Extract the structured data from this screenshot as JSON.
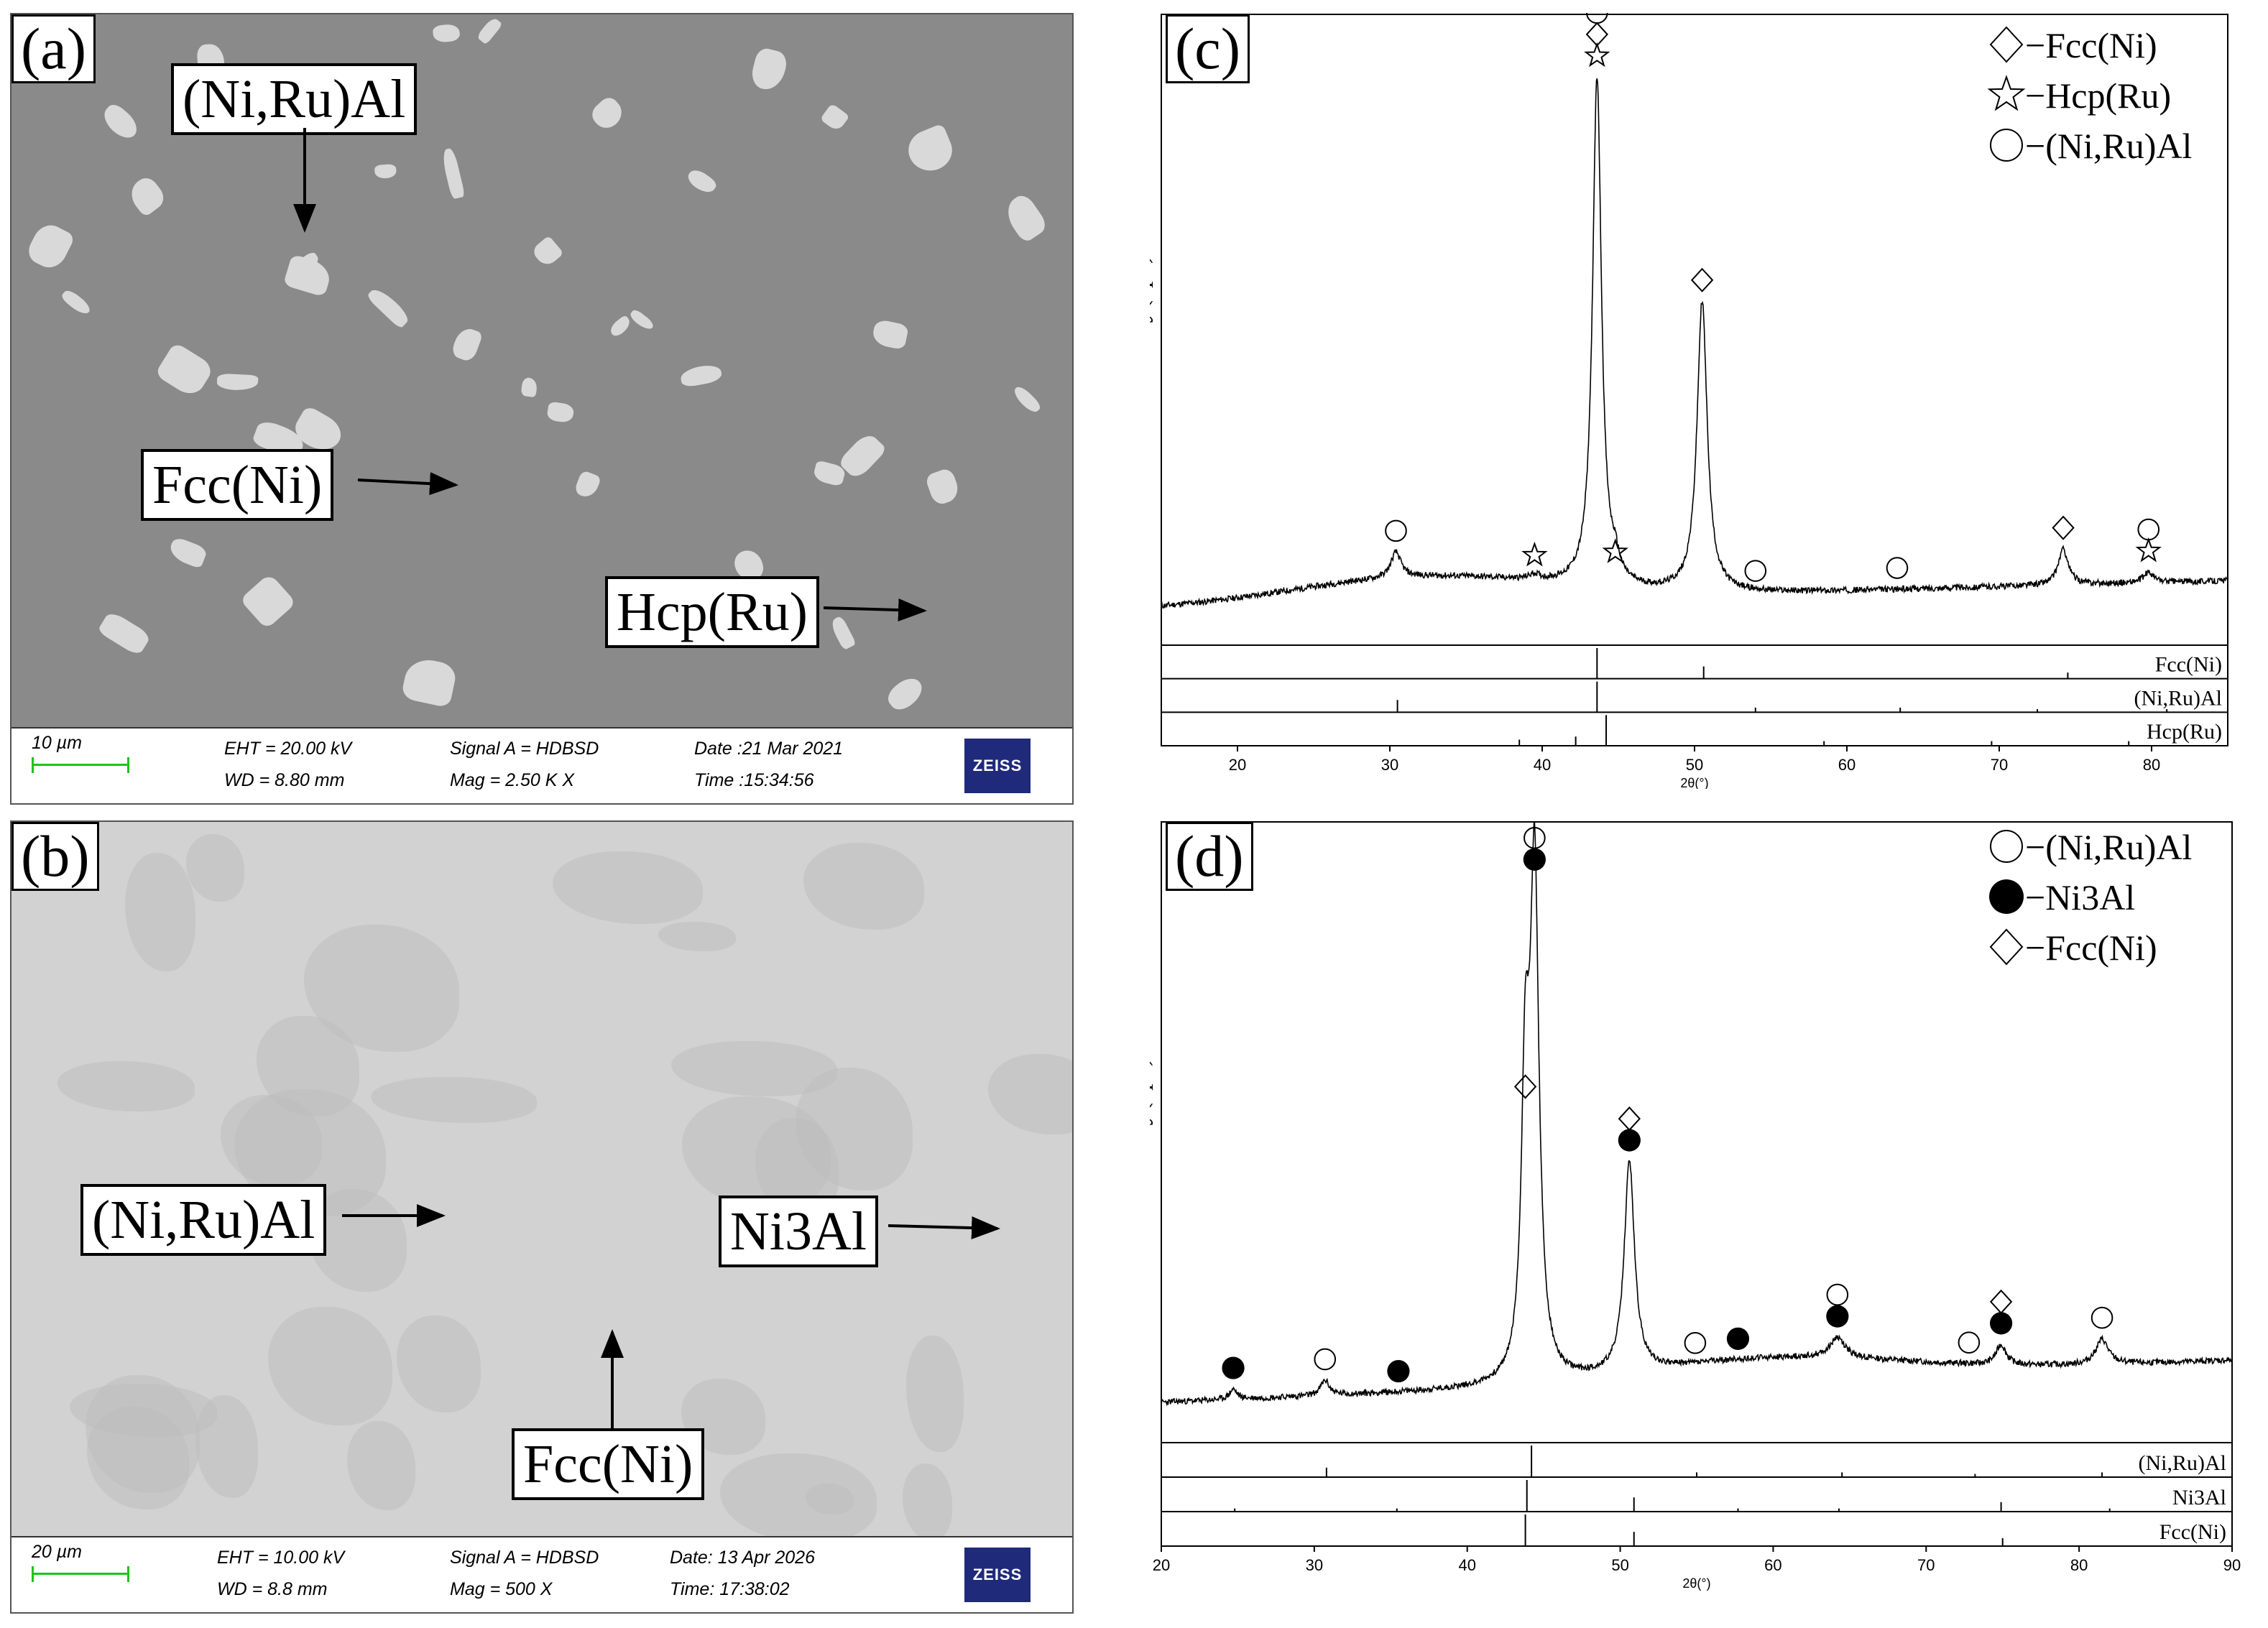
{
  "panel_a": {
    "letter": "(a)",
    "labels": {
      "nirual": "(Ni,Ru)Al",
      "fcc": "Fcc(Ni)",
      "hcp": "Hcp(Ru)"
    },
    "info": {
      "scale": "10 µm",
      "eht": "EHT = 20.00 kV",
      "wd": "WD = 8.80 mm",
      "signal": "Signal A = HDBSD",
      "mag": "Mag =    2.50 K X",
      "date": "Date :21 Mar 2021",
      "time": "Time :15:34:56",
      "logo": "ZEISS"
    }
  },
  "panel_b": {
    "letter": "(b)",
    "labels": {
      "nirual": "(Ni,Ru)Al",
      "ni3al": "Ni3Al",
      "fcc": "Fcc(Ni)"
    },
    "info": {
      "scale": "20 µm",
      "eht": "EHT = 10.00 kV",
      "wd": "WD =  8.8 mm",
      "signal": "Signal A = HDBSD",
      "mag": "Mag =    500 X",
      "date": "Date: 13 Apr 2026",
      "time": "Time: 17:38:02",
      "logo": "ZEISS"
    }
  },
  "chart_data": [
    {
      "type": "line",
      "panel": "(c)",
      "ylabel": "Intensity(cps)",
      "xlabel": "2θ(°)",
      "xlim": [
        15,
        85
      ],
      "xticks": [
        20,
        30,
        40,
        50,
        60,
        70,
        80
      ],
      "legend": [
        {
          "symbol": "diamond",
          "label": "−Fcc(Ni)"
        },
        {
          "symbol": "star",
          "label": "−Hcp(Ru)"
        },
        {
          "symbol": "circle",
          "label": "−(Ni,Ru)Al"
        }
      ],
      "peaks": [
        {
          "x": 30.4,
          "h": 0.05,
          "w": 0.4,
          "marks": [
            "circle"
          ]
        },
        {
          "x": 39.5,
          "h": 0.01,
          "w": 0.4,
          "marks": [
            "star"
          ]
        },
        {
          "x": 43.6,
          "h": 1.0,
          "w": 0.35,
          "marks": [
            "star",
            "diamond",
            "circle"
          ]
        },
        {
          "x": 44.8,
          "h": 0.03,
          "w": 0.3,
          "marks": [
            "star"
          ]
        },
        {
          "x": 50.5,
          "h": 0.57,
          "w": 0.4,
          "marks": [
            "diamond"
          ]
        },
        {
          "x": 54.0,
          "h": 0.0,
          "w": 0.4,
          "marks": [
            "circle"
          ]
        },
        {
          "x": 63.3,
          "h": 0.0,
          "w": 0.4,
          "marks": [
            "circle"
          ]
        },
        {
          "x": 74.2,
          "h": 0.07,
          "w": 0.4,
          "marks": [
            "diamond"
          ]
        },
        {
          "x": 79.8,
          "h": 0.02,
          "w": 0.4,
          "marks": [
            "star",
            "circle"
          ]
        }
      ],
      "reference_rows": [
        {
          "label": "Fcc(Ni)",
          "lines": [
            {
              "x": 43.6,
              "h": 1.0
            },
            {
              "x": 50.6,
              "h": 0.4
            },
            {
              "x": 74.5,
              "h": 0.2
            }
          ]
        },
        {
          "label": "(Ni,Ru)Al",
          "lines": [
            {
              "x": 30.5,
              "h": 0.4
            },
            {
              "x": 43.6,
              "h": 1.0
            },
            {
              "x": 54.0,
              "h": 0.15
            },
            {
              "x": 63.5,
              "h": 0.15
            },
            {
              "x": 72.5,
              "h": 0.1
            },
            {
              "x": 81.0,
              "h": 0.1
            }
          ]
        },
        {
          "label": "Hcp(Ru)",
          "lines": [
            {
              "x": 38.5,
              "h": 0.2
            },
            {
              "x": 42.2,
              "h": 0.3
            },
            {
              "x": 44.2,
              "h": 1.0
            },
            {
              "x": 58.5,
              "h": 0.15
            },
            {
              "x": 69.5,
              "h": 0.15
            },
            {
              "x": 78.5,
              "h": 0.15
            }
          ]
        }
      ]
    },
    {
      "type": "line",
      "panel": "(d)",
      "ylabel": "Intensity(cps)",
      "xlabel": "2θ(°)",
      "xlim": [
        20,
        90
      ],
      "xticks": [
        20,
        30,
        40,
        50,
        60,
        70,
        80,
        90
      ],
      "legend": [
        {
          "symbol": "circle",
          "label": "−(Ni,Ru)Al"
        },
        {
          "symbol": "dot",
          "label": "−Ni3Al"
        },
        {
          "symbol": "diamond",
          "label": "−Fcc(Ni)"
        }
      ],
      "peaks": [
        {
          "x": 24.7,
          "h": 0.02,
          "w": 0.3,
          "marks": [
            "dot"
          ]
        },
        {
          "x": 30.7,
          "h": 0.03,
          "w": 0.35,
          "marks": [
            "circle"
          ]
        },
        {
          "x": 35.5,
          "h": 0.0,
          "w": 0.3,
          "marks": [
            "dot"
          ]
        },
        {
          "x": 43.8,
          "h": 0.55,
          "w": 0.3,
          "marks": [
            "diamond"
          ]
        },
        {
          "x": 44.4,
          "h": 1.0,
          "w": 0.35,
          "marks": [
            "dot",
            "circle"
          ]
        },
        {
          "x": 50.6,
          "h": 0.42,
          "w": 0.4,
          "marks": [
            "dot",
            "diamond"
          ]
        },
        {
          "x": 54.9,
          "h": 0.0,
          "w": 0.4,
          "marks": [
            "circle"
          ]
        },
        {
          "x": 57.7,
          "h": 0.0,
          "w": 0.4,
          "marks": [
            "dot"
          ]
        },
        {
          "x": 64.2,
          "h": 0.04,
          "w": 0.6,
          "marks": [
            "dot",
            "circle"
          ]
        },
        {
          "x": 72.8,
          "h": 0.0,
          "w": 0.4,
          "marks": [
            "circle"
          ]
        },
        {
          "x": 74.9,
          "h": 0.04,
          "w": 0.4,
          "marks": [
            "dot",
            "diamond"
          ]
        },
        {
          "x": 81.5,
          "h": 0.05,
          "w": 0.5,
          "marks": [
            "circle"
          ]
        }
      ],
      "reference_rows": [
        {
          "label": "(Ni,Ru)Al",
          "lines": [
            {
              "x": 30.8,
              "h": 0.3
            },
            {
              "x": 44.2,
              "h": 1.0
            },
            {
              "x": 55.0,
              "h": 0.15
            },
            {
              "x": 64.5,
              "h": 0.15
            },
            {
              "x": 73.2,
              "h": 0.1
            },
            {
              "x": 81.5,
              "h": 0.15
            }
          ]
        },
        {
          "label": "Ni3Al",
          "lines": [
            {
              "x": 24.8,
              "h": 0.1
            },
            {
              "x": 35.4,
              "h": 0.1
            },
            {
              "x": 43.9,
              "h": 1.0
            },
            {
              "x": 50.9,
              "h": 0.45
            },
            {
              "x": 57.7,
              "h": 0.1
            },
            {
              "x": 64.3,
              "h": 0.1
            },
            {
              "x": 74.9,
              "h": 0.3
            },
            {
              "x": 82.0,
              "h": 0.1
            }
          ]
        },
        {
          "label": "Fcc(Ni)",
          "lines": [
            {
              "x": 43.8,
              "h": 1.0
            },
            {
              "x": 50.9,
              "h": 0.45
            },
            {
              "x": 75.0,
              "h": 0.25
            }
          ]
        }
      ]
    }
  ]
}
